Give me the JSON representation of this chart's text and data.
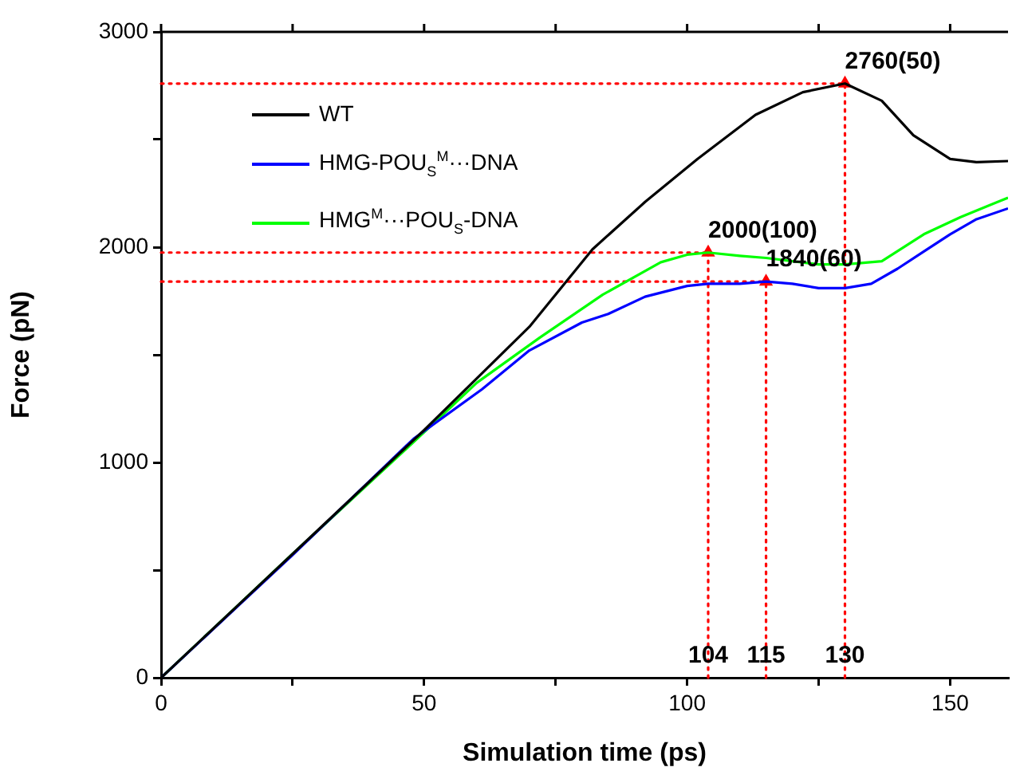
{
  "chart_data": {
    "type": "line",
    "xlabel": "Simulation time (ps)",
    "ylabel": "Force (pN)",
    "xlim": [
      0,
      161
    ],
    "xticks": [
      0,
      {
        "value": 25,
        "label": null
      },
      50,
      {
        "value": 75,
        "label": null
      },
      100,
      {
        "value": 125,
        "label": null
      },
      150
    ],
    "ylim": [
      0,
      3000
    ],
    "yticks": [
      0,
      {
        "value": 500,
        "label": null
      },
      1000,
      {
        "value": 1500,
        "label": null
      },
      2000,
      {
        "value": 2500,
        "label": null
      },
      3000
    ],
    "grid": false,
    "legend": "top left",
    "marker": "none",
    "line_style": "solid",
    "series": [
      {
        "name": "WT",
        "color": "#000000",
        "x": [
          0,
          25,
          50,
          70,
          82,
          92,
          102,
          113,
          122,
          130,
          137,
          143,
          150,
          155,
          161
        ],
        "values": [
          0,
          575,
          1150,
          1630,
          1990,
          2210,
          2410,
          2615,
          2720,
          2760,
          2680,
          2520,
          2410,
          2395,
          2400
        ]
      },
      {
        "name": "HMG-POU$_{S}$$^{M}$···DNA",
        "color": "#0000ff",
        "x": [
          0,
          25,
          48,
          61,
          70,
          80,
          85,
          92,
          100,
          104,
          110,
          115,
          120,
          125,
          130,
          135,
          140,
          145,
          150,
          155,
          161
        ],
        "values": [
          0,
          570,
          1110,
          1340,
          1520,
          1650,
          1690,
          1770,
          1820,
          1830,
          1830,
          1840,
          1830,
          1810,
          1810,
          1830,
          1900,
          1980,
          2060,
          2130,
          2180
        ]
      },
      {
        "name": "HMG$^{M}$···POU$_{S}$-DNA",
        "color": "#00ff00",
        "x": [
          0,
          25,
          50,
          60,
          72,
          84,
          95,
          100,
          104,
          110,
          115,
          125,
          130,
          137,
          145,
          152,
          161
        ],
        "values": [
          0,
          575,
          1140,
          1370,
          1580,
          1780,
          1930,
          1965,
          1975,
          1960,
          1950,
          1920,
          1920,
          1935,
          2060,
          2140,
          2230
        ]
      },
      {
        "type": "scatter",
        "marker": "triangle",
        "color": "#ff0000",
        "x": [
          104,
          115,
          130
        ],
        "values": [
          1975,
          1840,
          2760
        ]
      }
    ],
    "ref_lines": [
      {
        "axis": "y",
        "value": 2760,
        "color": "#ff0000",
        "line_style": "dotted"
      },
      {
        "axis": "y",
        "value": 1975,
        "color": "#ff0000",
        "line_style": "dotted"
      },
      {
        "axis": "y",
        "value": 1840,
        "color": "#ff0000",
        "line_style": "dotted"
      },
      {
        "axis": "x",
        "value": 104,
        "label": "104",
        "color": "#ff0000",
        "line_style": "dotted"
      },
      {
        "axis": "x",
        "value": 115,
        "label": "115",
        "color": "#ff0000",
        "line_style": "dotted"
      },
      {
        "axis": "x",
        "value": 130,
        "label": "130",
        "color": "#ff0000",
        "line_style": "dotted"
      }
    ],
    "annotations": [
      {
        "text": "2760(50)",
        "x": 130,
        "y": 2760
      },
      {
        "text": "2000(100)",
        "x": 104,
        "y": 1975
      },
      {
        "text": "1840(60)",
        "x": 115,
        "y": 1840
      }
    ]
  }
}
